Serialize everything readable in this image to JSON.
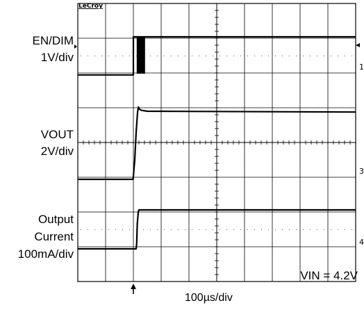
{
  "chart_data": {
    "type": "line",
    "instrument_brand": "LeCroy",
    "grid": {
      "x_divisions": 10,
      "y_divisions": 8
    },
    "timebase_label": "100µs/div",
    "annotation": "VIN = 4.2V",
    "trigger_marker": "↑",
    "channel_numbers": [
      "1",
      "3",
      "4"
    ],
    "time_axis_us": [
      -200,
      800
    ],
    "trigger_time_us": 0,
    "channels": [
      {
        "id": "en_dim",
        "label_line1": "EN/DIM",
        "label_line2": "1V/div",
        "scale_per_div": "1V/div",
        "marker": "1",
        "x_us": [
          -200,
          -1,
          0,
          0,
          25,
          25,
          800
        ],
        "y_div": [
          -0.12,
          -0.12,
          -0.12,
          1.25,
          1.25,
          1.25,
          1.25
        ],
        "pwm_burst_us": [
          12,
          42
        ]
      },
      {
        "id": "vout",
        "label_line1": "VOUT",
        "label_line2": "2V/div",
        "scale_per_div": "2V/div",
        "marker": "3",
        "x_us": [
          -200,
          -1,
          5,
          10,
          15,
          18,
          22,
          30,
          50,
          800
        ],
        "y_div": [
          0,
          0,
          0.7,
          1.7,
          2.4,
          2.6,
          2.52,
          2.48,
          2.45,
          2.42
        ]
      },
      {
        "id": "output_current",
        "label_line1": "Output",
        "label_line2": "Current",
        "label_line3": "100mA/div",
        "scale_per_div": "100mA/div",
        "marker": "4",
        "x_us": [
          -200,
          10,
          12,
          14,
          18,
          20,
          22,
          800
        ],
        "y_div": [
          0,
          0,
          0.2,
          0.9,
          1.35,
          1.4,
          1.4,
          1.4
        ]
      }
    ]
  }
}
